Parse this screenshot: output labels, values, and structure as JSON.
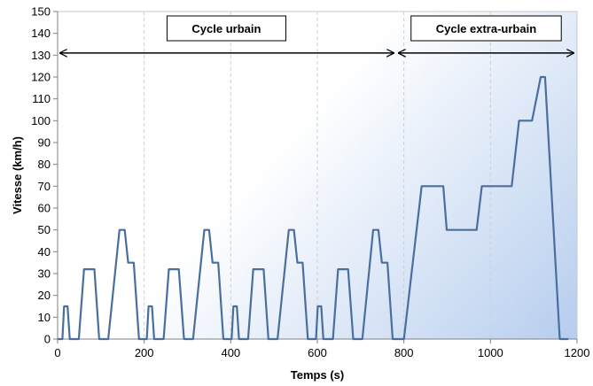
{
  "chart_data": {
    "type": "line",
    "title": "",
    "xlabel": "Temps (s)",
    "ylabel": "Vitesse (km/h)",
    "xlim": [
      0,
      1200
    ],
    "ylim": [
      0,
      150
    ],
    "x_ticks": [
      0,
      200,
      400,
      600,
      800,
      1000,
      1200
    ],
    "y_ticks": [
      0,
      10,
      20,
      30,
      40,
      50,
      60,
      70,
      80,
      90,
      100,
      110,
      120,
      130,
      140,
      150
    ],
    "grid": {
      "vertical": true,
      "horizontal": false
    },
    "series": [
      {
        "name": "Vitesse",
        "color": "#4a6f9e",
        "points": [
          [
            0,
            0
          ],
          [
            11,
            0
          ],
          [
            15,
            15
          ],
          [
            23,
            15
          ],
          [
            28,
            0
          ],
          [
            49,
            0
          ],
          [
            61,
            32
          ],
          [
            85,
            32
          ],
          [
            96,
            0
          ],
          [
            117,
            0
          ],
          [
            143,
            50
          ],
          [
            155,
            50
          ],
          [
            163,
            35
          ],
          [
            176,
            35
          ],
          [
            188,
            0
          ],
          [
            206,
            0
          ],
          [
            210,
            15
          ],
          [
            218,
            15
          ],
          [
            223,
            0
          ],
          [
            245,
            0
          ],
          [
            257,
            32
          ],
          [
            280,
            32
          ],
          [
            292,
            0
          ],
          [
            313,
            0
          ],
          [
            339,
            50
          ],
          [
            350,
            50
          ],
          [
            358,
            35
          ],
          [
            371,
            35
          ],
          [
            383,
            0
          ],
          [
            402,
            0
          ],
          [
            406,
            15
          ],
          [
            414,
            15
          ],
          [
            419,
            0
          ],
          [
            440,
            0
          ],
          [
            452,
            32
          ],
          [
            476,
            32
          ],
          [
            487,
            0
          ],
          [
            508,
            0
          ],
          [
            534,
            50
          ],
          [
            546,
            50
          ],
          [
            554,
            35
          ],
          [
            566,
            35
          ],
          [
            578,
            0
          ],
          [
            597,
            0
          ],
          [
            601,
            15
          ],
          [
            609,
            15
          ],
          [
            614,
            0
          ],
          [
            636,
            0
          ],
          [
            648,
            32
          ],
          [
            671,
            32
          ],
          [
            683,
            0
          ],
          [
            704,
            0
          ],
          [
            729,
            50
          ],
          [
            741,
            50
          ],
          [
            749,
            35
          ],
          [
            762,
            35
          ],
          [
            774,
            0
          ],
          [
            800,
            0
          ],
          [
            841,
            70
          ],
          [
            891,
            70
          ],
          [
            899,
            50
          ],
          [
            968,
            50
          ],
          [
            980,
            70
          ],
          [
            1049,
            70
          ],
          [
            1066,
            100
          ],
          [
            1096,
            100
          ],
          [
            1116,
            120
          ],
          [
            1126,
            120
          ],
          [
            1160,
            0
          ],
          [
            1180,
            0
          ]
        ]
      }
    ],
    "annotations": [
      {
        "label": "Cycle urbain",
        "from_x": 0,
        "to_x": 780,
        "y": 131
      },
      {
        "label": "Cycle extra-urbain",
        "from_x": 780,
        "to_x": 1200,
        "y": 131
      }
    ]
  }
}
